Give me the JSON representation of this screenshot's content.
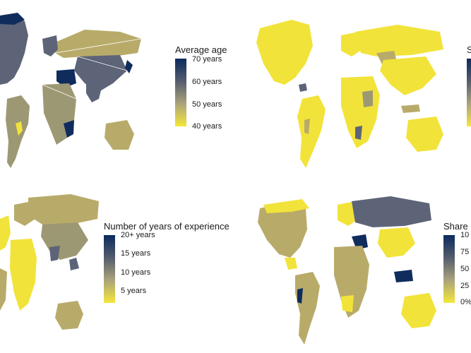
{
  "panels": [
    {
      "legend_title": "Average age",
      "ticks": [
        "70 years",
        "60 years",
        "50 years",
        "40 years"
      ]
    },
    {
      "legend_title": "S",
      "ticks": []
    },
    {
      "legend_title": "Number of years of experience",
      "ticks": [
        "20+ years",
        "15 years",
        "10 years",
        "5 years"
      ]
    },
    {
      "legend_title": "Share",
      "ticks": [
        "10",
        "75",
        "50",
        "25",
        "0%"
      ]
    }
  ],
  "colors": {
    "high": "#0b2a5c",
    "mid_high": "#545c6e",
    "mid_low": "#a9a27b",
    "low": "#f5e73a"
  }
}
